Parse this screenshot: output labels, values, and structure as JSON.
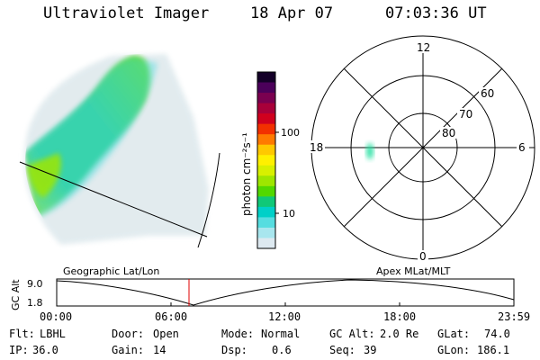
{
  "header": {
    "title": "Ultraviolet Imager",
    "date": "18 Apr 07",
    "time": "07:03:36 UT"
  },
  "colorbar": {
    "unit_label": "photon cm⁻²s⁻¹",
    "ticks": [
      "100",
      "10"
    ],
    "colors": [
      "#140028",
      "#4b005a",
      "#7a0050",
      "#a8003a",
      "#d0001e",
      "#f23000",
      "#ff7a00",
      "#ffc800",
      "#fff000",
      "#d8f000",
      "#9ee600",
      "#52d800",
      "#10c878",
      "#00d0c8",
      "#56dde0",
      "#a8e6ee",
      "#dde9f0"
    ]
  },
  "polar_plot": {
    "mlt_labels": {
      "top": "12",
      "left": "18",
      "right": "6",
      "bottom": "0"
    },
    "lat_labels": [
      "60",
      "70",
      "80"
    ],
    "spot_color": "#20e0a0"
  },
  "altitude_plot": {
    "left_label": "Geographic Lat/Lon",
    "right_label": "Apex MLat/MLT",
    "y_axis_label": "GC Alt",
    "y_ticks": [
      "9.0",
      "1.8"
    ],
    "x_ticks": [
      "00:00",
      "06:00",
      "12:00",
      "18:00",
      "23:59"
    ],
    "marker_color": "#e00000"
  },
  "info": {
    "row1": [
      {
        "key": "Flt:",
        "value": "LBHL"
      },
      {
        "key": "Door:",
        "value": "Open"
      },
      {
        "key": "Mode:",
        "value": "Normal"
      },
      {
        "key": "GC Alt:",
        "value": "2.0 Re"
      },
      {
        "key": "GLat:",
        "value": "74.0"
      }
    ],
    "row2": [
      {
        "key": "IP:",
        "value": "36.0"
      },
      {
        "key": "Gain:",
        "value": "14"
      },
      {
        "key": "Dsp:",
        "value": "0.6"
      },
      {
        "key": "Seq:",
        "value": "39"
      },
      {
        "key": "GLon:",
        "value": "186.1"
      }
    ]
  }
}
